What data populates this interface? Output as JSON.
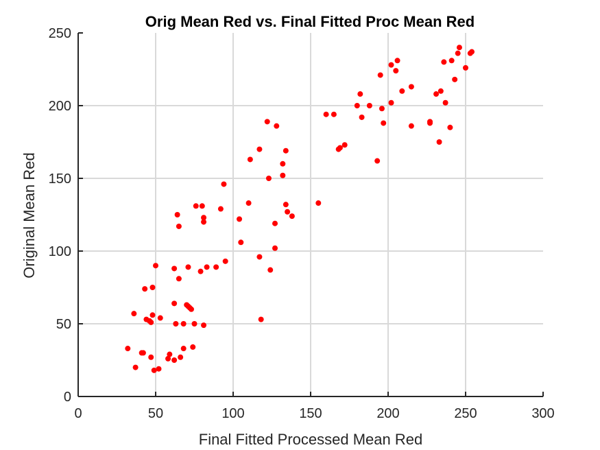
{
  "chart_data": {
    "type": "scatter",
    "title": "Orig Mean Red vs. Final Fitted Proc Mean Red",
    "xlabel": "Final Fitted Processed Mean Red",
    "ylabel": "Original Mean Red",
    "xlim": [
      0,
      300
    ],
    "ylim": [
      0,
      250
    ],
    "xticks": [
      0,
      50,
      100,
      150,
      200,
      250,
      300
    ],
    "yticks": [
      0,
      50,
      100,
      150,
      200,
      250
    ],
    "xtick_labels": [
      "0",
      "50",
      "100",
      "150",
      "200",
      "250",
      "300"
    ],
    "ytick_labels": [
      "0",
      "50",
      "100",
      "150",
      "200",
      "250"
    ],
    "grid": true,
    "marker_color": "#ff0000",
    "points": [
      [
        32,
        33
      ],
      [
        36,
        57
      ],
      [
        37,
        20
      ],
      [
        41,
        30
      ],
      [
        42,
        30
      ],
      [
        43,
        74
      ],
      [
        44,
        53
      ],
      [
        46,
        52
      ],
      [
        47,
        51
      ],
      [
        47,
        27
      ],
      [
        48,
        56
      ],
      [
        48,
        75
      ],
      [
        49,
        18
      ],
      [
        50,
        90
      ],
      [
        52,
        19
      ],
      [
        53,
        54
      ],
      [
        58,
        26
      ],
      [
        59,
        29
      ],
      [
        62,
        64
      ],
      [
        62,
        25
      ],
      [
        62,
        88
      ],
      [
        63,
        50
      ],
      [
        64,
        125
      ],
      [
        65,
        81
      ],
      [
        65,
        117
      ],
      [
        66,
        27
      ],
      [
        68,
        33
      ],
      [
        68,
        50
      ],
      [
        70,
        63
      ],
      [
        71,
        62
      ],
      [
        71,
        89
      ],
      [
        72,
        61
      ],
      [
        73,
        60
      ],
      [
        74,
        34
      ],
      [
        75,
        50
      ],
      [
        76,
        131
      ],
      [
        79,
        86
      ],
      [
        80,
        131
      ],
      [
        81,
        123
      ],
      [
        81,
        120
      ],
      [
        81,
        49
      ],
      [
        83,
        89
      ],
      [
        89,
        89
      ],
      [
        92,
        129
      ],
      [
        94,
        146
      ],
      [
        95,
        93
      ],
      [
        104,
        122
      ],
      [
        105,
        106
      ],
      [
        110,
        133
      ],
      [
        111,
        163
      ],
      [
        117,
        96
      ],
      [
        117,
        170
      ],
      [
        118,
        53
      ],
      [
        122,
        189
      ],
      [
        123,
        150
      ],
      [
        124,
        87
      ],
      [
        127,
        119
      ],
      [
        127,
        102
      ],
      [
        128,
        186
      ],
      [
        132,
        152
      ],
      [
        132,
        160
      ],
      [
        134,
        132
      ],
      [
        134,
        169
      ],
      [
        135,
        127
      ],
      [
        138,
        124
      ],
      [
        155,
        133
      ],
      [
        160,
        194
      ],
      [
        165,
        194
      ],
      [
        168,
        170
      ],
      [
        169,
        171
      ],
      [
        172,
        173
      ],
      [
        180,
        200
      ],
      [
        182,
        208
      ],
      [
        183,
        192
      ],
      [
        188,
        200
      ],
      [
        193,
        162
      ],
      [
        195,
        221
      ],
      [
        196,
        198
      ],
      [
        197,
        188
      ],
      [
        202,
        202
      ],
      [
        202,
        228
      ],
      [
        205,
        224
      ],
      [
        206,
        231
      ],
      [
        209,
        210
      ],
      [
        215,
        186
      ],
      [
        215,
        213
      ],
      [
        227,
        188
      ],
      [
        227,
        189
      ],
      [
        231,
        208
      ],
      [
        233,
        175
      ],
      [
        234,
        210
      ],
      [
        236,
        230
      ],
      [
        237,
        202
      ],
      [
        240,
        185
      ],
      [
        241,
        231
      ],
      [
        243,
        218
      ],
      [
        245,
        236
      ],
      [
        246,
        240
      ],
      [
        250,
        226
      ],
      [
        253,
        236
      ],
      [
        254,
        237
      ]
    ]
  }
}
